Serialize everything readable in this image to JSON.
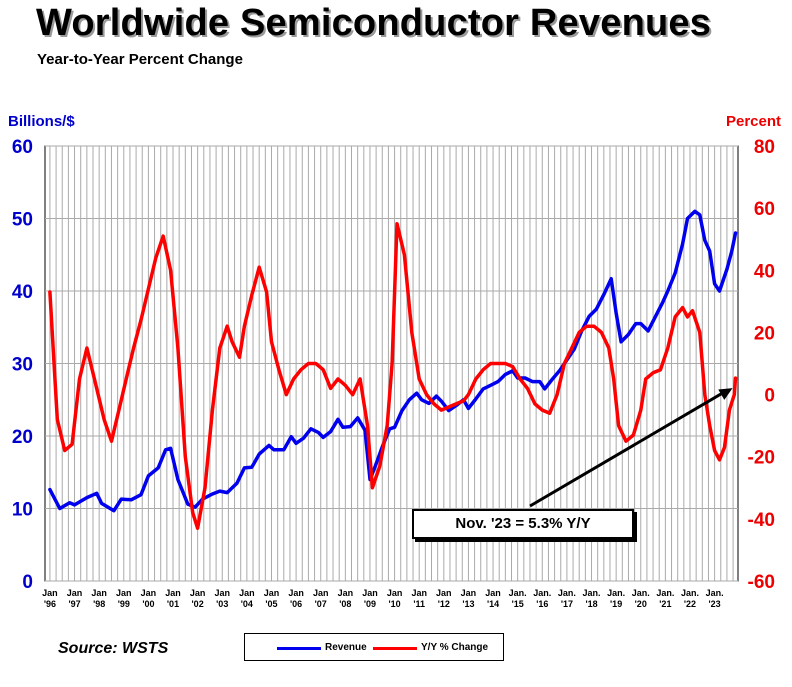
{
  "title": "Worldwide Semiconductor Revenues",
  "subtitle": "Year-to-Year Percent Change",
  "source": "Source: WSTS",
  "annotation": "Nov. '23 = 5.3% Y/Y",
  "colors": {
    "revenue": "#0000ee",
    "yoy": "#ff0000",
    "left_axis": "#0000cc",
    "right_axis": "#ee0000",
    "grid": "#aaaaaa"
  },
  "chart_data": {
    "type": "line",
    "ylabel": "Billions/$",
    "y2label": "Percent",
    "ylim": [
      0,
      60
    ],
    "y2lim": [
      -60,
      80
    ],
    "yticks": [
      0,
      10,
      20,
      30,
      40,
      50,
      60
    ],
    "y2ticks": [
      -60,
      -40,
      -20,
      0,
      20,
      40,
      60,
      80
    ],
    "grid": true,
    "legend_position": "bottom-center",
    "x_tick_labels": [
      {
        "top": "Jan",
        "bottom": "'96",
        "x": 1996.0
      },
      {
        "top": "Jan",
        "bottom": "'97",
        "x": 1997.0
      },
      {
        "top": "Jan",
        "bottom": "'98",
        "x": 1998.0
      },
      {
        "top": "Jan",
        "bottom": "'99",
        "x": 1999.0
      },
      {
        "top": "Jan",
        "bottom": "'00",
        "x": 2000.0
      },
      {
        "top": "Jan",
        "bottom": "'01",
        "x": 2001.0
      },
      {
        "top": "Jan",
        "bottom": "'02",
        "x": 2002.0
      },
      {
        "top": "Jan",
        "bottom": "'03",
        "x": 2003.0
      },
      {
        "top": "Jan",
        "bottom": "'04",
        "x": 2004.0
      },
      {
        "top": "Jan",
        "bottom": "'05",
        "x": 2005.0
      },
      {
        "top": "Jan",
        "bottom": "'06",
        "x": 2006.0
      },
      {
        "top": "Jan",
        "bottom": "'07",
        "x": 2007.0
      },
      {
        "top": "Jan",
        "bottom": "'08",
        "x": 2008.0
      },
      {
        "top": "Jan",
        "bottom": "'09",
        "x": 2009.0
      },
      {
        "top": "Jan",
        "bottom": "'10",
        "x": 2010.0
      },
      {
        "top": "Jan",
        "bottom": "'11",
        "x": 2011.0
      },
      {
        "top": "Jan",
        "bottom": "'12",
        "x": 2012.0
      },
      {
        "top": "Jan",
        "bottom": "'13",
        "x": 2013.0
      },
      {
        "top": "Jan",
        "bottom": "'14",
        "x": 2014.0
      },
      {
        "top": "Jan.",
        "bottom": "'15",
        "x": 2015.0
      },
      {
        "top": "Jan.",
        "bottom": "'16",
        "x": 2016.0
      },
      {
        "top": "Jan.",
        "bottom": "'17",
        "x": 2017.0
      },
      {
        "top": "Jan.",
        "bottom": "'18",
        "x": 2018.0
      },
      {
        "top": "Jan.",
        "bottom": "'19",
        "x": 2019.0
      },
      {
        "top": "Jan.",
        "bottom": "'20",
        "x": 2020.0
      },
      {
        "top": "Jan.",
        "bottom": "'21",
        "x": 2021.0
      },
      {
        "top": "Jan.",
        "bottom": "'22",
        "x": 2022.0
      },
      {
        "top": "Jan.",
        "bottom": "'23",
        "x": 2023.0
      }
    ],
    "series": [
      {
        "name": "Revenue",
        "axis": "left",
        "color": "#0000ee",
        "points": [
          [
            1996.0,
            12.6
          ],
          [
            1996.4,
            10.0
          ],
          [
            1996.8,
            10.8
          ],
          [
            1997.0,
            10.5
          ],
          [
            1997.5,
            11.5
          ],
          [
            1997.9,
            12.1
          ],
          [
            1998.1,
            10.7
          ],
          [
            1998.6,
            9.7
          ],
          [
            1998.9,
            11.3
          ],
          [
            1999.3,
            11.2
          ],
          [
            1999.7,
            11.9
          ],
          [
            2000.0,
            14.5
          ],
          [
            2000.4,
            15.6
          ],
          [
            2000.7,
            18.1
          ],
          [
            2000.9,
            18.3
          ],
          [
            2001.2,
            14.0
          ],
          [
            2001.6,
            10.6
          ],
          [
            2001.9,
            10.2
          ],
          [
            2002.2,
            11.3
          ],
          [
            2002.6,
            12.0
          ],
          [
            2002.9,
            12.4
          ],
          [
            2003.2,
            12.2
          ],
          [
            2003.6,
            13.5
          ],
          [
            2003.9,
            15.6
          ],
          [
            2004.2,
            15.7
          ],
          [
            2004.5,
            17.5
          ],
          [
            2004.9,
            18.7
          ],
          [
            2005.1,
            18.1
          ],
          [
            2005.5,
            18.1
          ],
          [
            2005.8,
            19.9
          ],
          [
            2006.0,
            19.0
          ],
          [
            2006.3,
            19.7
          ],
          [
            2006.6,
            21.0
          ],
          [
            2006.9,
            20.5
          ],
          [
            2007.1,
            19.8
          ],
          [
            2007.4,
            20.6
          ],
          [
            2007.7,
            22.3
          ],
          [
            2007.9,
            21.2
          ],
          [
            2008.2,
            21.3
          ],
          [
            2008.5,
            22.5
          ],
          [
            2008.8,
            20.8
          ],
          [
            2009.0,
            14.0
          ],
          [
            2009.2,
            15.7
          ],
          [
            2009.5,
            18.5
          ],
          [
            2009.8,
            21.0
          ],
          [
            2010.0,
            21.2
          ],
          [
            2010.3,
            23.5
          ],
          [
            2010.6,
            25.0
          ],
          [
            2010.9,
            25.9
          ],
          [
            2011.1,
            25.0
          ],
          [
            2011.4,
            24.5
          ],
          [
            2011.7,
            25.5
          ],
          [
            2011.9,
            24.8
          ],
          [
            2012.2,
            23.5
          ],
          [
            2012.5,
            24.2
          ],
          [
            2012.8,
            25.0
          ],
          [
            2013.0,
            23.8
          ],
          [
            2013.3,
            25.1
          ],
          [
            2013.6,
            26.5
          ],
          [
            2013.9,
            27.0
          ],
          [
            2014.2,
            27.5
          ],
          [
            2014.5,
            28.5
          ],
          [
            2014.8,
            29.0
          ],
          [
            2015.0,
            28.0
          ],
          [
            2015.3,
            28.0
          ],
          [
            2015.6,
            27.5
          ],
          [
            2015.9,
            27.5
          ],
          [
            2016.1,
            26.5
          ],
          [
            2016.4,
            27.8
          ],
          [
            2016.7,
            29.0
          ],
          [
            2017.0,
            30.5
          ],
          [
            2017.3,
            32.0
          ],
          [
            2017.6,
            34.5
          ],
          [
            2017.9,
            36.5
          ],
          [
            2018.2,
            37.5
          ],
          [
            2018.5,
            39.5
          ],
          [
            2018.8,
            41.7
          ],
          [
            2019.0,
            37.0
          ],
          [
            2019.2,
            33.0
          ],
          [
            2019.5,
            34.0
          ],
          [
            2019.8,
            35.5
          ],
          [
            2020.0,
            35.5
          ],
          [
            2020.3,
            34.5
          ],
          [
            2020.6,
            36.5
          ],
          [
            2020.9,
            38.5
          ],
          [
            2021.1,
            40.0
          ],
          [
            2021.4,
            42.5
          ],
          [
            2021.7,
            46.5
          ],
          [
            2021.9,
            50.0
          ],
          [
            2022.2,
            51.0
          ],
          [
            2022.4,
            50.5
          ],
          [
            2022.6,
            47.0
          ],
          [
            2022.8,
            45.5
          ],
          [
            2023.0,
            41.0
          ],
          [
            2023.2,
            40.0
          ],
          [
            2023.5,
            43.0
          ],
          [
            2023.7,
            45.5
          ],
          [
            2023.85,
            48.0
          ]
        ]
      },
      {
        "name": "Y/Y % Change",
        "axis": "right",
        "color": "#ff0000",
        "points": [
          [
            1996.0,
            33.0
          ],
          [
            1996.3,
            -8.0
          ],
          [
            1996.6,
            -18.0
          ],
          [
            1996.9,
            -16.0
          ],
          [
            1997.2,
            5.0
          ],
          [
            1997.5,
            15.0
          ],
          [
            1997.9,
            2.0
          ],
          [
            1998.2,
            -8.0
          ],
          [
            1998.5,
            -15.0
          ],
          [
            1998.8,
            -5.0
          ],
          [
            1999.1,
            5.0
          ],
          [
            1999.4,
            15.0
          ],
          [
            1999.7,
            24.0
          ],
          [
            2000.0,
            34.0
          ],
          [
            2000.3,
            44.0
          ],
          [
            2000.6,
            51.0
          ],
          [
            2000.9,
            40.0
          ],
          [
            2001.2,
            15.0
          ],
          [
            2001.5,
            -20.0
          ],
          [
            2001.8,
            -38.0
          ],
          [
            2002.0,
            -43.0
          ],
          [
            2002.3,
            -30.0
          ],
          [
            2002.6,
            -5.0
          ],
          [
            2002.9,
            15.0
          ],
          [
            2003.2,
            22.0
          ],
          [
            2003.4,
            17.0
          ],
          [
            2003.7,
            12.0
          ],
          [
            2003.9,
            22.0
          ],
          [
            2004.2,
            32.0
          ],
          [
            2004.5,
            41.0
          ],
          [
            2004.8,
            33.0
          ],
          [
            2005.0,
            17.0
          ],
          [
            2005.3,
            8.0
          ],
          [
            2005.6,
            0.0
          ],
          [
            2005.9,
            5.0
          ],
          [
            2006.2,
            8.0
          ],
          [
            2006.5,
            10.0
          ],
          [
            2006.8,
            10.0
          ],
          [
            2007.1,
            8.0
          ],
          [
            2007.4,
            2.0
          ],
          [
            2007.7,
            5.0
          ],
          [
            2008.0,
            3.0
          ],
          [
            2008.3,
            0.0
          ],
          [
            2008.6,
            5.0
          ],
          [
            2008.9,
            -10.0
          ],
          [
            2009.1,
            -30.0
          ],
          [
            2009.4,
            -23.0
          ],
          [
            2009.7,
            -10.0
          ],
          [
            2009.9,
            10.0
          ],
          [
            2010.1,
            55.0
          ],
          [
            2010.4,
            45.0
          ],
          [
            2010.7,
            20.0
          ],
          [
            2011.0,
            5.0
          ],
          [
            2011.3,
            0.0
          ],
          [
            2011.6,
            -3.0
          ],
          [
            2011.9,
            -5.0
          ],
          [
            2012.2,
            -4.0
          ],
          [
            2012.5,
            -3.0
          ],
          [
            2012.8,
            -2.0
          ],
          [
            2013.0,
            0.0
          ],
          [
            2013.3,
            5.0
          ],
          [
            2013.6,
            8.0
          ],
          [
            2013.9,
            10.0
          ],
          [
            2014.2,
            10.0
          ],
          [
            2014.5,
            10.0
          ],
          [
            2014.8,
            9.0
          ],
          [
            2015.1,
            5.0
          ],
          [
            2015.4,
            2.0
          ],
          [
            2015.7,
            -3.0
          ],
          [
            2016.0,
            -5.0
          ],
          [
            2016.3,
            -6.0
          ],
          [
            2016.6,
            0.0
          ],
          [
            2016.9,
            10.0
          ],
          [
            2017.2,
            15.0
          ],
          [
            2017.5,
            20.0
          ],
          [
            2017.8,
            22.0
          ],
          [
            2018.1,
            22.0
          ],
          [
            2018.4,
            20.0
          ],
          [
            2018.7,
            15.0
          ],
          [
            2018.9,
            5.0
          ],
          [
            2019.1,
            -10.0
          ],
          [
            2019.4,
            -15.0
          ],
          [
            2019.7,
            -13.0
          ],
          [
            2020.0,
            -5.0
          ],
          [
            2020.2,
            5.0
          ],
          [
            2020.5,
            7.0
          ],
          [
            2020.8,
            8.0
          ],
          [
            2021.1,
            15.0
          ],
          [
            2021.4,
            25.0
          ],
          [
            2021.7,
            28.0
          ],
          [
            2021.9,
            25.0
          ],
          [
            2022.1,
            27.0
          ],
          [
            2022.4,
            20.0
          ],
          [
            2022.6,
            0.0
          ],
          [
            2022.8,
            -10.0
          ],
          [
            2023.0,
            -18.0
          ],
          [
            2023.2,
            -21.0
          ],
          [
            2023.4,
            -17.0
          ],
          [
            2023.6,
            -5.0
          ],
          [
            2023.8,
            0.0
          ],
          [
            2023.85,
            5.3
          ]
        ]
      }
    ]
  }
}
